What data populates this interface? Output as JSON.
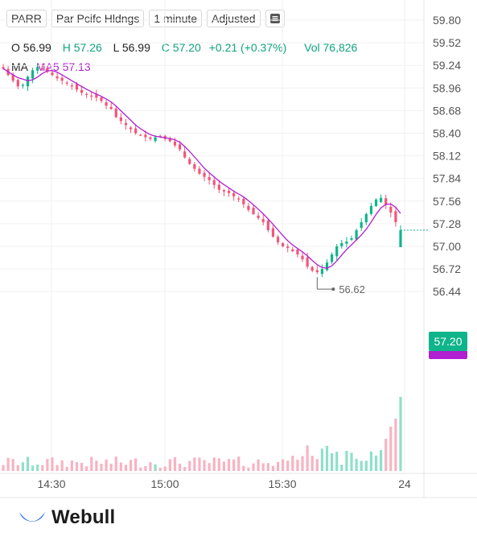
{
  "header": {
    "symbol": "PARR",
    "name": "Par Pcifc Hldngs",
    "interval": "1 minute",
    "adjust": "Adjusted"
  },
  "ohlc": {
    "o_label": "O",
    "o": "56.99",
    "h_label": "H",
    "h": "57.26",
    "l_label": "L",
    "l": "56.99",
    "c_label": "C",
    "c": "57.20",
    "change": "+0.21 (+0.37%)",
    "vol_label": "Vol",
    "vol": "76,826"
  },
  "ma": {
    "label": "MA",
    "ma5": "MA5 57.13"
  },
  "current_price": "57.20",
  "low_marker": "56.62",
  "brand": "Webull",
  "colors": {
    "up": "#10b48a",
    "down": "#f25577",
    "ma": "#b020d0",
    "volume_up": "#8fe0c8",
    "volume_down": "#f7b3c2"
  },
  "chart_data": {
    "type": "candlestick",
    "x_tick_labels": [
      "14:30",
      "15:00",
      "15:30",
      "24"
    ],
    "y_tick_labels": [
      "59.80",
      "59.52",
      "59.24",
      "58.96",
      "58.68",
      "58.40",
      "58.12",
      "57.84",
      "57.56",
      "57.28",
      "57.00",
      "56.72",
      "56.44"
    ],
    "ylim": [
      56.3,
      59.9
    ],
    "close_series": [
      59.2,
      59.12,
      59.05,
      58.98,
      59.0,
      59.1,
      59.18,
      59.22,
      59.2,
      59.16,
      59.12,
      59.08,
      59.05,
      59.02,
      58.98,
      58.94,
      58.9,
      58.88,
      58.86,
      58.84,
      58.8,
      58.74,
      58.7,
      58.6,
      58.55,
      58.5,
      58.45,
      58.4,
      58.38,
      58.35,
      58.33,
      58.35,
      58.36,
      58.33,
      58.3,
      58.25,
      58.2,
      58.1,
      58.02,
      57.96,
      57.9,
      57.86,
      57.82,
      57.76,
      57.7,
      57.68,
      57.66,
      57.62,
      57.58,
      57.52,
      57.45,
      57.4,
      57.35,
      57.3,
      57.2,
      57.12,
      57.05,
      57.0,
      56.98,
      56.94,
      56.9,
      56.84,
      56.75,
      56.7,
      56.68,
      56.72,
      56.8,
      56.9,
      57.0,
      57.04,
      57.06,
      57.1,
      57.2,
      57.3,
      57.4,
      57.5,
      57.58,
      57.6,
      57.52,
      57.42,
      57.3,
      57.2
    ],
    "ma5_last": 57.13,
    "day_low": 56.62,
    "last": {
      "open": 56.99,
      "high": 57.26,
      "low": 56.99,
      "close": 57.2,
      "volume": 76826
    }
  }
}
